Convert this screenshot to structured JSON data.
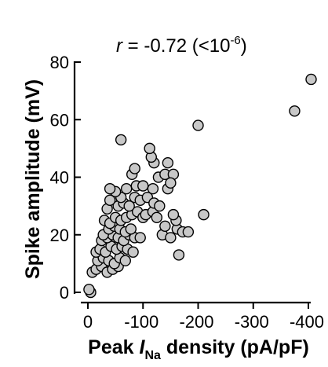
{
  "chart_data": {
    "type": "scatter",
    "title": {
      "r_symbol": "r",
      "eq": " = -0.72 (<10",
      "exp": "-6",
      "close": ")"
    },
    "xlabel": {
      "prefix": "Peak ",
      "I": "I",
      "sub": "Na",
      "suffix": " density (pA/pF)"
    },
    "ylabel": "Spike amplitude (mV)",
    "xlim": [
      0,
      -400
    ],
    "ylim": [
      0,
      80
    ],
    "xticks": [
      0,
      -100,
      -200,
      -300,
      -400
    ],
    "xtick_labels": [
      "0",
      "-100",
      "-200",
      "-300",
      "-400"
    ],
    "yticks": [
      0,
      20,
      40,
      60,
      80
    ],
    "ytick_labels": [
      "0",
      "20",
      "40",
      "60",
      "80"
    ],
    "grid": false,
    "points": [
      [
        -5,
        0
      ],
      [
        -2,
        1
      ],
      [
        -8,
        7
      ],
      [
        -15,
        8
      ],
      [
        -25,
        9
      ],
      [
        -35,
        7
      ],
      [
        -45,
        8
      ],
      [
        -55,
        9
      ],
      [
        -18,
        11
      ],
      [
        -28,
        12
      ],
      [
        -38,
        11
      ],
      [
        -48,
        10
      ],
      [
        -58,
        12
      ],
      [
        -68,
        11
      ],
      [
        -15,
        14
      ],
      [
        -22,
        15
      ],
      [
        -32,
        14
      ],
      [
        -42,
        16
      ],
      [
        -52,
        15
      ],
      [
        -62,
        16
      ],
      [
        -72,
        15
      ],
      [
        -82,
        14
      ],
      [
        -25,
        18
      ],
      [
        -35,
        19
      ],
      [
        -45,
        20
      ],
      [
        -55,
        19
      ],
      [
        -65,
        18
      ],
      [
        -75,
        20
      ],
      [
        -85,
        19
      ],
      [
        -95,
        19
      ],
      [
        -28,
        20
      ],
      [
        -38,
        22
      ],
      [
        -48,
        23
      ],
      [
        -58,
        22
      ],
      [
        -68,
        21
      ],
      [
        -78,
        22
      ],
      [
        -30,
        25
      ],
      [
        -40,
        24
      ],
      [
        -50,
        26
      ],
      [
        -60,
        25
      ],
      [
        -70,
        26
      ],
      [
        -80,
        27
      ],
      [
        -90,
        28
      ],
      [
        -100,
        26
      ],
      [
        -105,
        27
      ],
      [
        -118,
        28
      ],
      [
        -125,
        26
      ],
      [
        -35,
        29
      ],
      [
        -55,
        30
      ],
      [
        -65,
        31
      ],
      [
        -75,
        30
      ],
      [
        -40,
        32
      ],
      [
        -60,
        33
      ],
      [
        -85,
        33
      ],
      [
        -95,
        32
      ],
      [
        -108,
        33
      ],
      [
        -120,
        31
      ],
      [
        -130,
        30
      ],
      [
        -50,
        35
      ],
      [
        -70,
        36
      ],
      [
        -88,
        37
      ],
      [
        -100,
        37
      ],
      [
        -118,
        36
      ],
      [
        -40,
        36
      ],
      [
        -80,
        41
      ],
      [
        -85,
        43
      ],
      [
        -128,
        40
      ],
      [
        -140,
        41
      ],
      [
        -155,
        41
      ],
      [
        -120,
        45
      ],
      [
        -145,
        45
      ],
      [
        -115,
        47
      ],
      [
        -112,
        50
      ],
      [
        -60,
        53
      ],
      [
        -200,
        58
      ],
      [
        -135,
        20
      ],
      [
        -150,
        19
      ],
      [
        -162,
        22
      ],
      [
        -172,
        21
      ],
      [
        -182,
        21
      ],
      [
        -160,
        25
      ],
      [
        -155,
        27
      ],
      [
        -165,
        13
      ],
      [
        -210,
        27
      ],
      [
        -140,
        23
      ],
      [
        -145,
        36
      ],
      [
        -150,
        38
      ],
      [
        -375,
        63
      ],
      [
        -405,
        74
      ]
    ]
  }
}
